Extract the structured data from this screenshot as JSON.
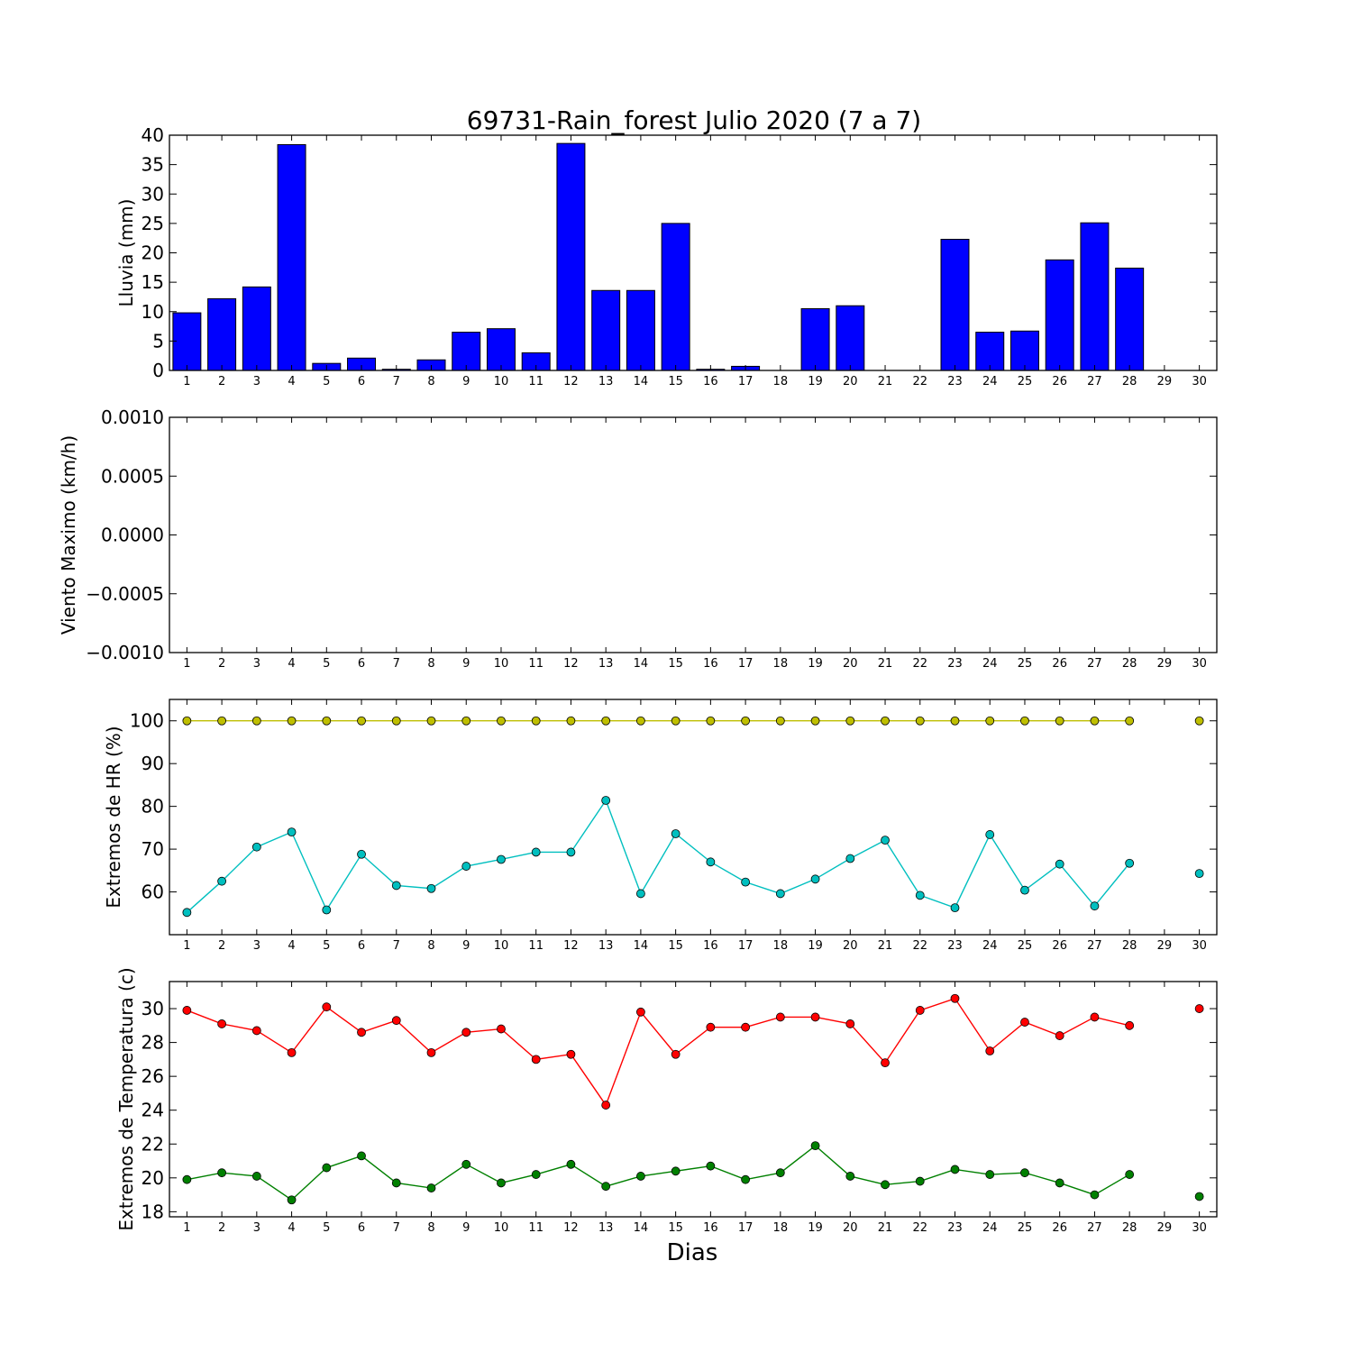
{
  "figure": {
    "title": "69731-Rain_forest Julio 2020  (7 a 7)",
    "xlabel": "Dias"
  },
  "chart_data": [
    {
      "type": "bar",
      "ylabel": "Lluvia (mm)",
      "ylim": [
        0,
        40
      ],
      "yticks": [
        0,
        5,
        10,
        15,
        20,
        25,
        30,
        35,
        40
      ],
      "categories": [
        1,
        2,
        3,
        4,
        5,
        6,
        7,
        8,
        9,
        10,
        11,
        12,
        13,
        14,
        15,
        16,
        17,
        18,
        19,
        20,
        21,
        22,
        23,
        24,
        25,
        26,
        27,
        28,
        29,
        30
      ],
      "series": [
        {
          "color": "#0000ff",
          "values": [
            9.8,
            12.2,
            14.2,
            38.4,
            1.2,
            2.1,
            0.2,
            1.8,
            6.5,
            7.1,
            3.0,
            38.6,
            13.6,
            13.6,
            25.0,
            0.2,
            0.7,
            0.0,
            10.5,
            11.0,
            0.0,
            0.0,
            22.3,
            6.5,
            6.7,
            18.8,
            25.1,
            17.4,
            0.0,
            0.0
          ]
        }
      ]
    },
    {
      "type": "line",
      "ylabel": "Viento Maximo (km/h)",
      "ylim": [
        -0.001,
        0.001
      ],
      "yticks": [
        "−0.0010",
        "−0.0005",
        "0.0000",
        "0.0005",
        "0.0010"
      ],
      "x": [
        1,
        2,
        3,
        4,
        5,
        6,
        7,
        8,
        9,
        10,
        11,
        12,
        13,
        14,
        15,
        16,
        17,
        18,
        19,
        20,
        21,
        22,
        23,
        24,
        25,
        26,
        27,
        28,
        29,
        30
      ],
      "series": []
    },
    {
      "type": "line",
      "ylabel": "Extremos de HR (%)",
      "ylim": [
        50,
        105
      ],
      "yticks": [
        60,
        70,
        80,
        90,
        100
      ],
      "x": [
        1,
        2,
        3,
        4,
        5,
        6,
        7,
        8,
        9,
        10,
        11,
        12,
        13,
        14,
        15,
        16,
        17,
        18,
        19,
        20,
        21,
        22,
        23,
        24,
        25,
        26,
        27,
        28,
        29,
        30
      ],
      "series": [
        {
          "color": "#bfbf00",
          "values": [
            100,
            100,
            100,
            100,
            100,
            100,
            100,
            100,
            100,
            100,
            100,
            100,
            100,
            100,
            100,
            100,
            100,
            100,
            100,
            100,
            100,
            100,
            100,
            100,
            100,
            100,
            100,
            100,
            null,
            100
          ]
        },
        {
          "color": "#00bfbf",
          "values": [
            55.2,
            62.5,
            70.5,
            74.0,
            55.8,
            68.8,
            61.5,
            60.8,
            66.0,
            67.6,
            69.3,
            69.3,
            81.4,
            59.6,
            73.6,
            67.0,
            62.3,
            59.6,
            63.0,
            67.8,
            72.1,
            59.2,
            56.3,
            73.4,
            60.4,
            66.5,
            56.7,
            66.7,
            null,
            64.3
          ]
        }
      ]
    },
    {
      "type": "line",
      "ylabel": "Extremos de Temperatura (c)",
      "ylim": [
        17.7,
        31.6
      ],
      "yticks": [
        18,
        20,
        22,
        24,
        26,
        28,
        30
      ],
      "x": [
        1,
        2,
        3,
        4,
        5,
        6,
        7,
        8,
        9,
        10,
        11,
        12,
        13,
        14,
        15,
        16,
        17,
        18,
        19,
        20,
        21,
        22,
        23,
        24,
        25,
        26,
        27,
        28,
        29,
        30
      ],
      "series": [
        {
          "color": "#ff0000",
          "values": [
            29.9,
            29.1,
            28.7,
            27.4,
            30.1,
            28.6,
            29.3,
            27.4,
            28.6,
            28.8,
            27.0,
            27.3,
            24.3,
            29.8,
            27.3,
            28.9,
            28.9,
            29.5,
            29.5,
            29.1,
            26.8,
            29.9,
            30.6,
            27.5,
            29.2,
            28.4,
            29.5,
            29.0,
            null,
            30.0
          ]
        },
        {
          "color": "#008000",
          "values": [
            19.9,
            20.3,
            20.1,
            18.7,
            20.6,
            21.3,
            19.7,
            19.4,
            20.8,
            19.7,
            20.2,
            20.8,
            19.5,
            20.1,
            20.4,
            20.7,
            19.9,
            20.3,
            21.9,
            20.1,
            19.6,
            19.8,
            20.5,
            20.2,
            20.3,
            19.7,
            19.0,
            20.2,
            null,
            18.9
          ]
        }
      ]
    }
  ]
}
